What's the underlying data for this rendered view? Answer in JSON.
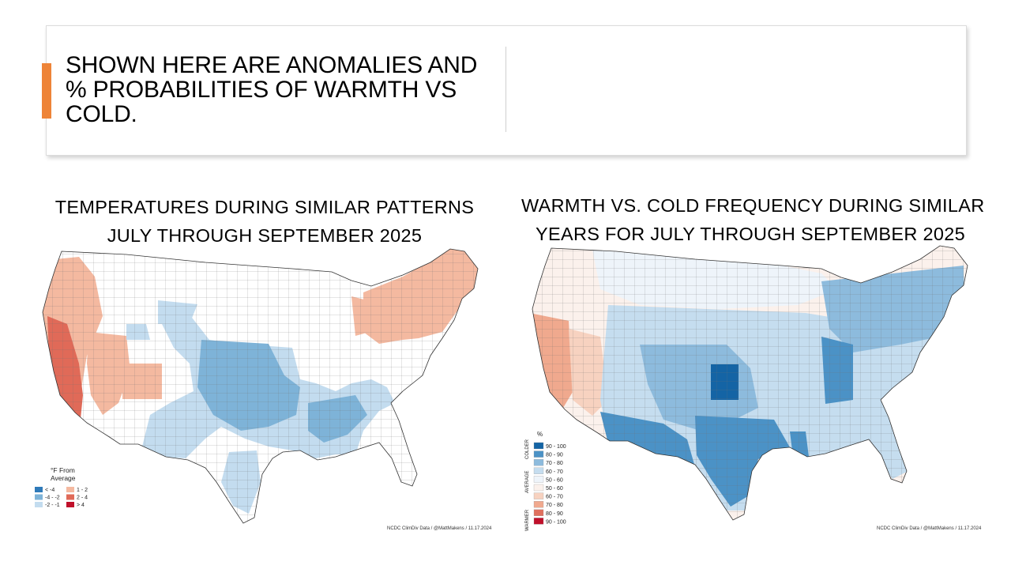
{
  "slide": {
    "title": "SHOWN HERE ARE ANOMALIES AND % PROBABILITIES OF WARMTH VS COLD.",
    "accent_color": "#ee8438"
  },
  "left_map": {
    "title_line1": "TEMPERATURES DURING SIMILAR PATTERNS",
    "title_line2": "JULY THROUGH SEPTEMBER 2025",
    "credit": "NCDC ClimDiv Data / @MattMakens / 11.17.2024",
    "legend": {
      "title_line1": "°F From",
      "title_line2": "Average",
      "items": [
        {
          "label": "< -4",
          "color": "#2f7ab9"
        },
        {
          "label": "-4 - -2",
          "color": "#7eb3d8"
        },
        {
          "label": "-2 - -1",
          "color": "#c3dcef"
        },
        {
          "label": "1 - 2",
          "color": "#f4b9a0"
        },
        {
          "label": "2 - 4",
          "color": "#e06a58"
        },
        {
          "label": "> 4",
          "color": "#c0102a"
        }
      ]
    }
  },
  "right_map": {
    "title_line1": "WARMTH VS. COLD FREQUENCY DURING SIMILAR",
    "title_line2": "YEARS FOR JULY THROUGH SEPTEMBER 2025",
    "credit": "NCDC ClimDiv Data / @MattMakens / 11.17.2024",
    "legend": {
      "unit": "%",
      "side_labels": [
        "COLDER",
        "AVERAGE",
        "WARMER"
      ],
      "items": [
        {
          "label": "90 - 100",
          "color": "#1464a5"
        },
        {
          "label": "80 - 90",
          "color": "#4b92c6"
        },
        {
          "label": "70 - 80",
          "color": "#8dbbdd"
        },
        {
          "label": "60 - 70",
          "color": "#c5ddef"
        },
        {
          "label": "50 - 60",
          "color": "#eef4fa"
        },
        {
          "label": "50 - 60",
          "color": "#fbf1ec"
        },
        {
          "label": "60 - 70",
          "color": "#f7d2c0"
        },
        {
          "label": "70 - 80",
          "color": "#f0a98e"
        },
        {
          "label": "80 - 90",
          "color": "#e0705e"
        },
        {
          "label": "90 - 100",
          "color": "#c0102a"
        }
      ]
    }
  }
}
